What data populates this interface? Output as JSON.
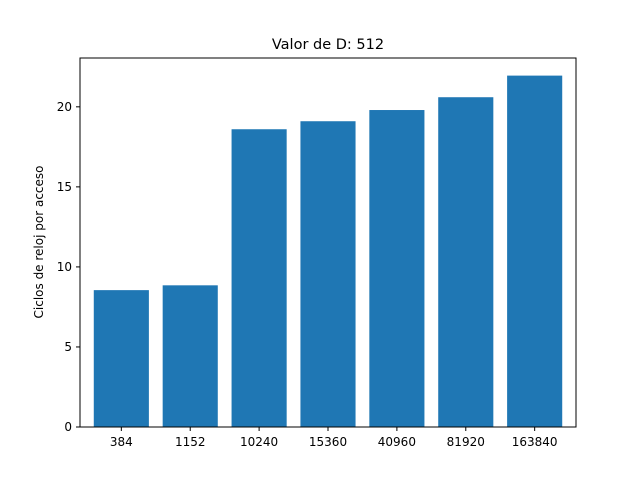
{
  "chart_data": {
    "type": "bar",
    "title": "Valor de D: 512",
    "xlabel": "",
    "ylabel": "Ciclos de reloj por acceso",
    "categories": [
      "384",
      "1152",
      "10240",
      "15360",
      "40960",
      "81920",
      "163840"
    ],
    "values": [
      8.55,
      8.85,
      18.6,
      19.1,
      19.8,
      20.6,
      21.95
    ],
    "ylim": [
      0,
      23.05
    ],
    "yticks": [
      0,
      5,
      10,
      15,
      20
    ],
    "grid": false,
    "bar_color": "#1f77b4"
  }
}
